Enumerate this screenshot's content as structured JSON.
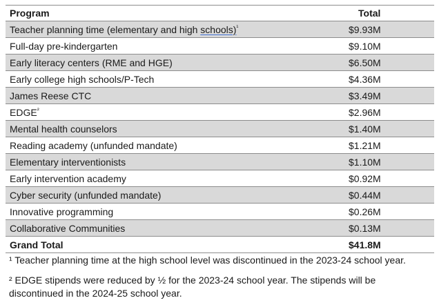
{
  "table": {
    "headers": {
      "program": "Program",
      "total": "Total"
    },
    "rows": [
      {
        "program_pre": "Teacher planning time (elementary and high ",
        "program_link": "schools)",
        "sup": "¹",
        "total": "$9.93M"
      },
      {
        "program": "Full-day pre-kindergarten",
        "total": "$9.10M"
      },
      {
        "program": "Early literacy centers (RME and HGE)",
        "total": "$6.50M"
      },
      {
        "program": "Early college high schools/P-Tech",
        "total": "$4.36M"
      },
      {
        "program": "James Reese CTC",
        "total": "$3.49M"
      },
      {
        "program": "EDGE",
        "sup": "²",
        "total": "$2.96M"
      },
      {
        "program": "Mental health counselors",
        "total": "$1.40M"
      },
      {
        "program": "Reading academy (unfunded mandate)",
        "total": "$1.21M"
      },
      {
        "program": "Elementary interventionists",
        "total": "$1.10M"
      },
      {
        "program": "Early intervention academy",
        "total": "$0.92M"
      },
      {
        "program": "Cyber security (unfunded mandate)",
        "total": "$0.44M"
      },
      {
        "program": "Innovative programming",
        "total": "$0.26M"
      },
      {
        "program": "Collaborative Communities",
        "total": "$0.13M"
      }
    ],
    "grand_total": {
      "label": "Grand Total",
      "value": "$41.8M"
    }
  },
  "footnotes": [
    "¹ Teacher planning time at the high school level was discontinued in the 2023-24 school year.",
    "² EDGE stipends were reduced by ½ for the 2023-24 school year. The stipends will be discontinued in the 2024-25 school year."
  ]
}
